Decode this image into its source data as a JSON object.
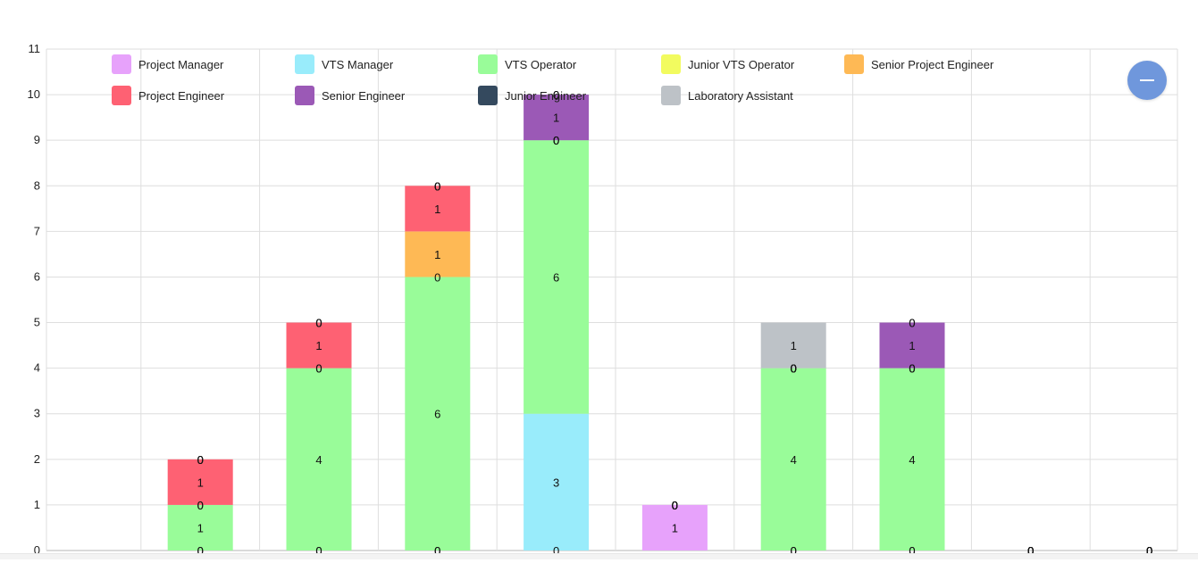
{
  "chart_data": {
    "type": "bar",
    "stacked": true,
    "categories": [
      "",
      "",
      "",
      "",
      "",
      "",
      "",
      "",
      ""
    ],
    "ylim": [
      0,
      11
    ],
    "yticks": [
      0,
      1,
      2,
      3,
      4,
      5,
      6,
      7,
      8,
      9,
      10,
      11
    ],
    "grid": true,
    "legend_position": "top",
    "series": [
      {
        "name": "Project Manager",
        "color": "#e7a2fb",
        "values": [
          0,
          0,
          0,
          0,
          1,
          0,
          0,
          0,
          0
        ]
      },
      {
        "name": "VTS Manager",
        "color": "#99ecfb",
        "values": [
          0,
          0,
          0,
          3,
          0,
          0,
          0,
          0,
          0
        ]
      },
      {
        "name": "VTS Operator",
        "color": "#99fc99",
        "values": [
          1,
          4,
          6,
          6,
          0,
          4,
          4,
          0,
          0
        ]
      },
      {
        "name": "Junior VTS Operator",
        "color": "#f2fb5f",
        "values": [
          0,
          0,
          0,
          0,
          0,
          0,
          0,
          0,
          0
        ]
      },
      {
        "name": "Senior Project Engineer",
        "color": "#feb955",
        "values": [
          0,
          0,
          1,
          0,
          0,
          0,
          0,
          0,
          0
        ]
      },
      {
        "name": "Project Engineer",
        "color": "#fe6173",
        "values": [
          1,
          1,
          1,
          0,
          0,
          0,
          0,
          0,
          0
        ]
      },
      {
        "name": "Senior Engineer",
        "color": "#9b59b6",
        "values": [
          0,
          0,
          0,
          1,
          0,
          0,
          1,
          0,
          0
        ]
      },
      {
        "name": "Junior Engineer",
        "color": "#34495e",
        "values": [
          0,
          0,
          0,
          0,
          0,
          0,
          0,
          0,
          0
        ]
      },
      {
        "name": "Laboratory Assistant",
        "color": "#bdc2c7",
        "values": [
          0,
          0,
          0,
          0,
          0,
          1,
          0,
          0,
          0
        ]
      }
    ]
  },
  "controls": {
    "collapse_button_icon": "minus-icon"
  }
}
